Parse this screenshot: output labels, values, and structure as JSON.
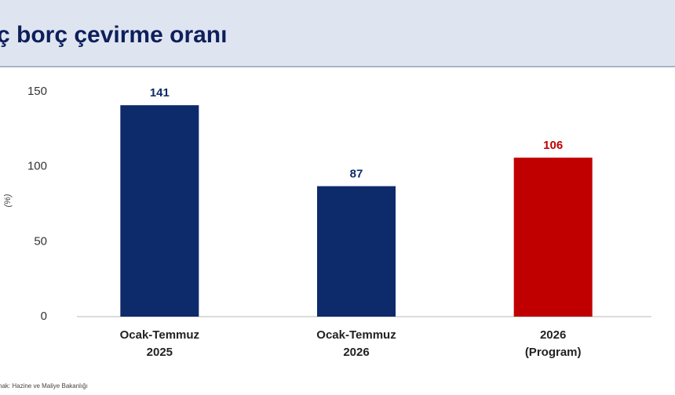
{
  "chart_data": {
    "type": "bar",
    "title": "ç borç çevirme oranı",
    "ylabel": "(%)",
    "source": "nak: Hazine ve Maliye Bakanlığı",
    "categories": [
      [
        "Ocak-Temmuz",
        "2025"
      ],
      [
        "Ocak-Temmuz",
        "2026"
      ],
      [
        "2026",
        "(Program)"
      ]
    ],
    "values": [
      141,
      87,
      106
    ],
    "colors": [
      "#0d2a6b",
      "#0d2a6b",
      "#c00000"
    ],
    "ylim": [
      0,
      150
    ],
    "yticks": [
      0,
      50,
      100,
      150
    ],
    "grid": false
  }
}
